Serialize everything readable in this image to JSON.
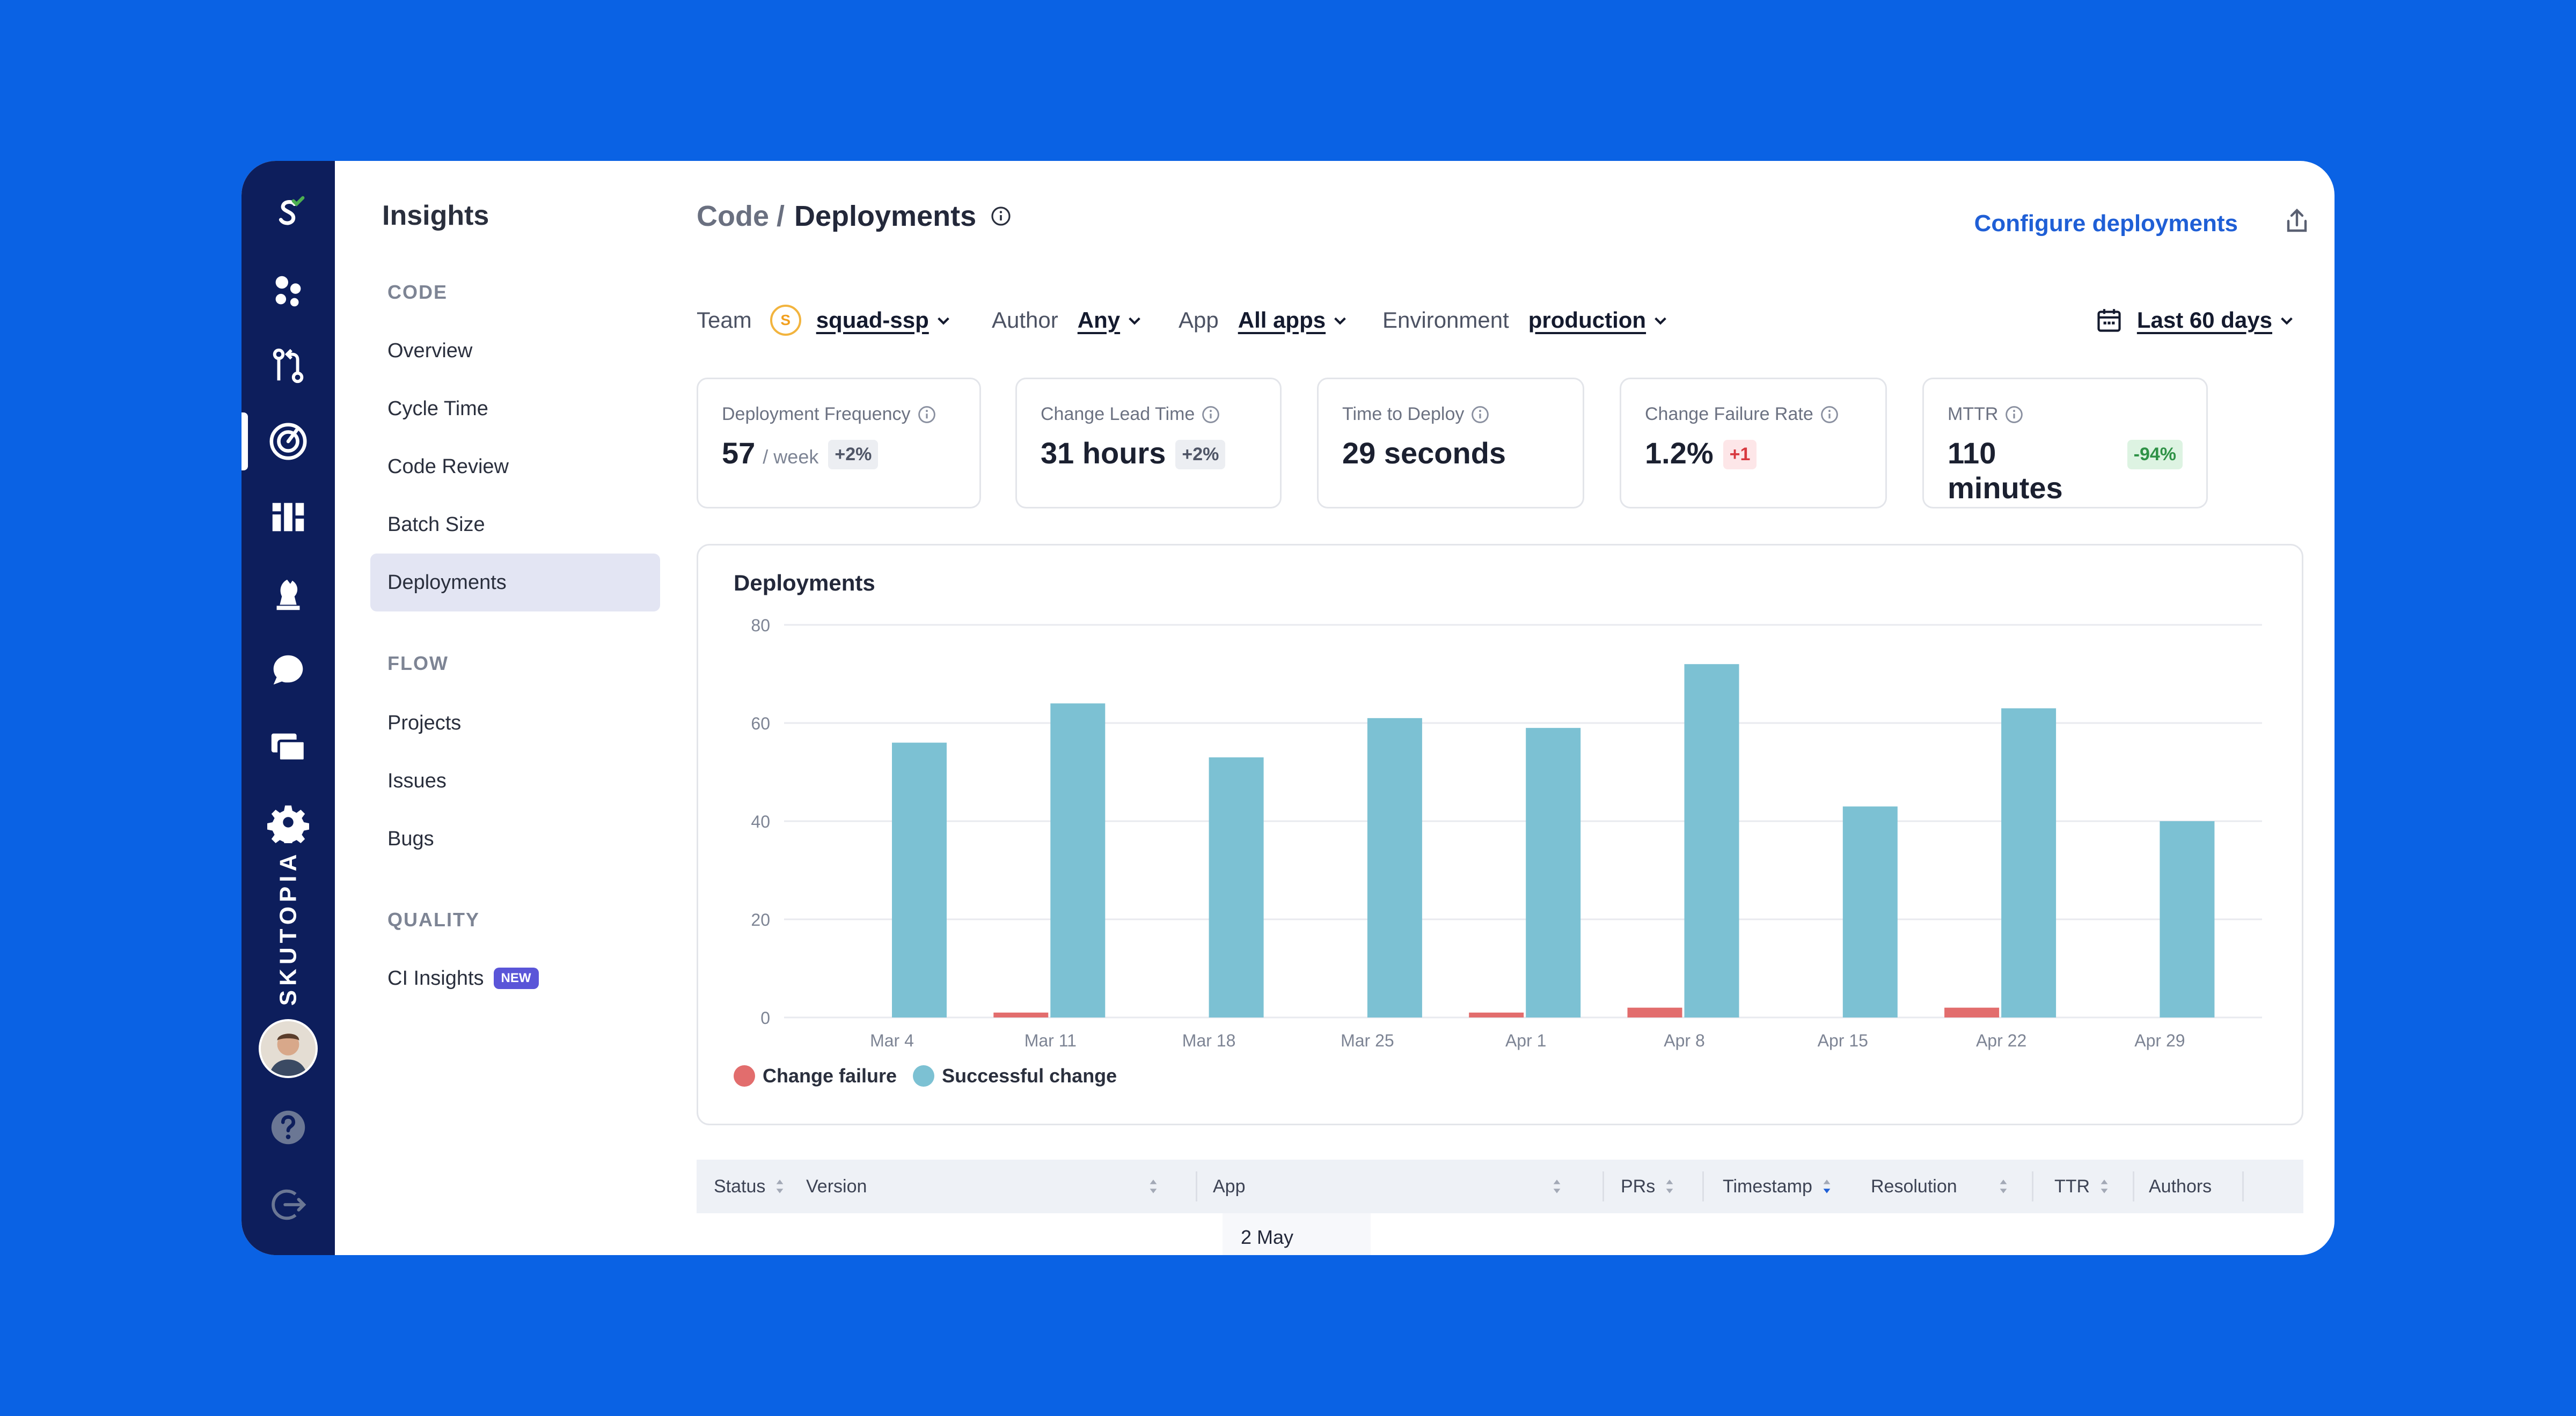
{
  "rail": {
    "brand_text": "SKUTOPIA",
    "items": [
      "logo-icon",
      "teams-icon",
      "pull-requests-icon",
      "insights-icon",
      "dashboard-icon",
      "strategy-icon",
      "chat-icon",
      "cards-icon",
      "settings-icon"
    ],
    "bottom": [
      "help-icon",
      "logout-icon"
    ]
  },
  "subnav": {
    "title": "Insights",
    "sections": [
      {
        "label": "CODE",
        "items": [
          "Overview",
          "Cycle Time",
          "Code Review",
          "Batch Size",
          "Deployments"
        ]
      },
      {
        "label": "FLOW",
        "items": [
          "Projects",
          "Issues",
          "Bugs"
        ]
      },
      {
        "label": "QUALITY",
        "items": [
          "CI Insights"
        ]
      }
    ],
    "active": "Deployments",
    "new_badge": "NEW"
  },
  "header": {
    "parent": "Code",
    "separator": "/",
    "title": "Deployments",
    "configure_label": "Configure deployments"
  },
  "filters": {
    "team_label": "Team",
    "team_initial": "S",
    "team_value": "squad-ssp",
    "author_label": "Author",
    "author_value": "Any",
    "app_label": "App",
    "app_value": "All apps",
    "env_label": "Environment",
    "env_value": "production",
    "date_value": "Last 60 days"
  },
  "metrics": [
    {
      "label": "Deployment Frequency",
      "value": "57",
      "unit": "/ week",
      "delta": "+2%",
      "tone": "neutral"
    },
    {
      "label": "Change Lead Time",
      "value": "31 hours",
      "unit": "",
      "delta": "+2%",
      "tone": "neutral"
    },
    {
      "label": "Time to Deploy",
      "value": "29 seconds",
      "unit": "",
      "delta": "",
      "tone": ""
    },
    {
      "label": "Change Failure Rate",
      "value": "1.2%",
      "unit": "",
      "delta": "+1",
      "tone": "bad"
    },
    {
      "label": "MTTR",
      "value": "110 minutes",
      "unit": "",
      "delta": "-94%",
      "tone": "good"
    }
  ],
  "chart_data": {
    "type": "bar",
    "title": "Deployments",
    "categories": [
      "Mar 4",
      "Mar 11",
      "Mar 18",
      "Mar 25",
      "Apr 1",
      "Apr 8",
      "Apr 15",
      "Apr 22",
      "Apr 29"
    ],
    "series": [
      {
        "name": "Change failure",
        "color": "#e26d6d",
        "values": [
          0,
          1,
          0,
          0,
          1,
          2,
          0,
          2,
          0
        ]
      },
      {
        "name": "Successful change",
        "color": "#7cc1d3",
        "values": [
          56,
          64,
          53,
          61,
          59,
          72,
          43,
          63,
          40
        ]
      }
    ],
    "ylim": [
      0,
      80
    ],
    "yticks": [
      0,
      20,
      40,
      60,
      80
    ],
    "grid": true,
    "legend": "bottom-left"
  },
  "table": {
    "columns": [
      "Status",
      "Version",
      "App",
      "PRs",
      "Timestamp",
      "Resolution",
      "TTR",
      "Authors"
    ],
    "first_timestamp": "2 May"
  }
}
